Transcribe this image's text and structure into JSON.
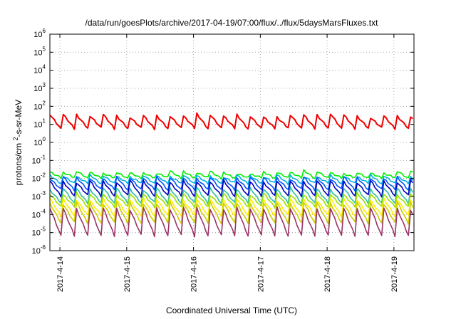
{
  "chart_data": {
    "type": "line",
    "title": "/data/run/goesPlots/archive/2017-04-19/07:00/flux/../flux/5daysMarsFluxes.txt",
    "xlabel": "Coordinated Universal Time (UTC)",
    "ylabel": "protons/cm2-s-sr-MeV",
    "y_scale": "log",
    "ylim_exponent": [
      -6,
      6
    ],
    "y_ticks": [
      {
        "base": "10",
        "exp": "6"
      },
      {
        "base": "10",
        "exp": "5"
      },
      {
        "base": "10",
        "exp": "4"
      },
      {
        "base": "10",
        "exp": "3"
      },
      {
        "base": "10",
        "exp": "2"
      },
      {
        "base": "10",
        "exp": "1"
      },
      {
        "base": "10",
        "exp": "0"
      },
      {
        "base": "10",
        "exp": "-1"
      },
      {
        "base": "10",
        "exp": "-2"
      },
      {
        "base": "10",
        "exp": "-3"
      },
      {
        "base": "10",
        "exp": "-4"
      },
      {
        "base": "10",
        "exp": "-5"
      },
      {
        "base": "10",
        "exp": "-6"
      }
    ],
    "x_ticks": [
      "2017-4-14",
      "2017-4-15",
      "2017-4-16",
      "2017-4-17",
      "2017-4-18",
      "2017-4-19"
    ],
    "xlim_days": [
      -0.15,
      5.3
    ],
    "grid": true,
    "series": [
      {
        "color": "#ee0000",
        "low_exp": 0.75,
        "high_exp": 1.55,
        "trend": 0.06
      },
      {
        "color": "#00ee00",
        "low_exp": -2.0,
        "high_exp": -1.6,
        "trend": 0.05
      },
      {
        "color": "#00b0e0",
        "low_exp": -2.3,
        "high_exp": -1.8,
        "trend": 0.0
      },
      {
        "color": "#0055ff",
        "low_exp": -2.65,
        "high_exp": -1.9,
        "trend": 0.0
      },
      {
        "color": "#0000bb",
        "low_exp": -3.0,
        "high_exp": -2.1,
        "trend": 0.0
      },
      {
        "color": "#30c0a0",
        "low_exp": -3.4,
        "high_exp": -2.5,
        "trend": 0.0
      },
      {
        "color": "#a0e000",
        "low_exp": -3.6,
        "high_exp": -2.8,
        "trend": 0.0
      },
      {
        "color": "#ffee00",
        "low_exp": -4.1,
        "high_exp": -3.1,
        "trend": 0.0
      },
      {
        "color": "#cccc00",
        "low_exp": -4.5,
        "high_exp": -3.3,
        "trend": 0.0
      },
      {
        "color": "#993366",
        "low_exp": -5.2,
        "high_exp": -3.6,
        "trend": 0.0
      }
    ]
  }
}
